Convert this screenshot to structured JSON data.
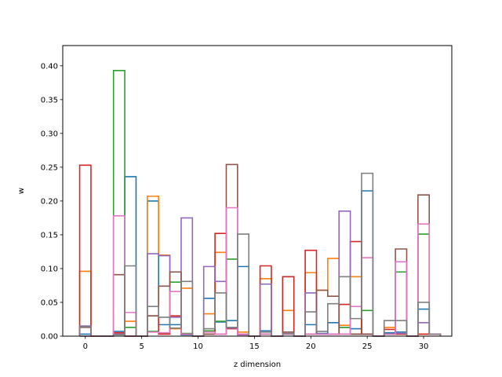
{
  "chart_data": {
    "type": "step-histogram",
    "xlabel": "z dimension",
    "ylabel": "w",
    "xlim": [
      -2,
      32.5
    ],
    "ylim": [
      0,
      0.43
    ],
    "xticks": [
      0,
      5,
      10,
      15,
      20,
      25,
      30
    ],
    "yticks": [
      0.0,
      0.05,
      0.1,
      0.15,
      0.2,
      0.25,
      0.3,
      0.35,
      0.4
    ],
    "ytick_labels": [
      "0.00",
      "0.05",
      "0.10",
      "0.15",
      "0.20",
      "0.25",
      "0.30",
      "0.35",
      "0.40"
    ],
    "series_colors": [
      "#1f77b4",
      "#ff7f0e",
      "#2ca02c",
      "#d62728",
      "#9467bd",
      "#8c564b",
      "#e377c2",
      "#7f7f7f"
    ],
    "bins": [
      {
        "z": 0,
        "values": [
          0.003,
          0.096,
          0.0,
          0.253,
          0.015,
          0.013,
          0.0,
          0.014
        ]
      },
      {
        "z": 1,
        "values": [
          0.0,
          0.0,
          0.0,
          0.0,
          0.0,
          0.0,
          0.0,
          0.0
        ]
      },
      {
        "z": 2,
        "values": [
          0.0,
          0.0,
          0.0,
          0.0,
          0.0,
          0.0,
          0.0,
          0.0
        ]
      },
      {
        "z": 3,
        "values": [
          0.007,
          0.003,
          0.393,
          0.005,
          0.003,
          0.091,
          0.178,
          0.002
        ]
      },
      {
        "z": 4,
        "values": [
          0.236,
          0.022,
          0.013,
          0.0,
          0.0,
          0.0,
          0.035,
          0.104
        ]
      },
      {
        "z": 5,
        "values": [
          0.0,
          0.0,
          0.0,
          0.0,
          0.0,
          0.0,
          0.0,
          0.0
        ]
      },
      {
        "z": 6,
        "values": [
          0.2,
          0.207,
          0.007,
          0.03,
          0.122,
          0.03,
          0.006,
          0.044
        ]
      },
      {
        "z": 7,
        "values": [
          0.017,
          0.12,
          0.004,
          0.003,
          0.119,
          0.074,
          0.005,
          0.028
        ]
      },
      {
        "z": 8,
        "values": [
          0.017,
          0.011,
          0.08,
          0.03,
          0.028,
          0.095,
          0.066,
          0.012
        ]
      },
      {
        "z": 9,
        "values": [
          0.002,
          0.071,
          0.004,
          0.003,
          0.175,
          0.003,
          0.003,
          0.081
        ]
      },
      {
        "z": 10,
        "values": [
          0.0,
          0.0,
          0.0,
          0.0,
          0.0,
          0.0,
          0.0,
          0.0
        ]
      },
      {
        "z": 11,
        "values": [
          0.056,
          0.033,
          0.008,
          0.003,
          0.103,
          0.003,
          0.006,
          0.011
        ]
      },
      {
        "z": 12,
        "values": [
          0.021,
          0.124,
          0.022,
          0.152,
          0.081,
          0.003,
          0.003,
          0.064
        ]
      },
      {
        "z": 13,
        "values": [
          0.023,
          0.013,
          0.114,
          0.011,
          0.012,
          0.254,
          0.19,
          0.013
        ]
      },
      {
        "z": 14,
        "values": [
          0.103,
          0.006,
          0.003,
          0.002,
          0.002,
          0.003,
          0.003,
          0.151
        ]
      },
      {
        "z": 15,
        "values": [
          0.0,
          0.0,
          0.0,
          0.0,
          0.0,
          0.0,
          0.0,
          0.0
        ]
      },
      {
        "z": 16,
        "values": [
          0.008,
          0.085,
          0.003,
          0.104,
          0.077,
          0.003,
          0.003,
          0.006
        ]
      },
      {
        "z": 17,
        "values": [
          0.0,
          0.0,
          0.0,
          0.0,
          0.0,
          0.0,
          0.0,
          0.0
        ]
      },
      {
        "z": 18,
        "values": [
          0.003,
          0.038,
          0.003,
          0.088,
          0.003,
          0.006,
          0.003,
          0.004
        ]
      },
      {
        "z": 19,
        "values": [
          0.0,
          0.0,
          0.0,
          0.0,
          0.0,
          0.0,
          0.0,
          0.0
        ]
      },
      {
        "z": 20,
        "values": [
          0.017,
          0.094,
          0.003,
          0.127,
          0.064,
          0.003,
          0.003,
          0.036
        ]
      },
      {
        "z": 21,
        "values": [
          0.004,
          0.068,
          0.003,
          0.003,
          0.003,
          0.068,
          0.003,
          0.007
        ]
      },
      {
        "z": 22,
        "values": [
          0.02,
          0.115,
          0.003,
          0.003,
          0.003,
          0.059,
          0.003,
          0.048
        ]
      },
      {
        "z": 23,
        "values": [
          0.013,
          0.016,
          0.013,
          0.047,
          0.185,
          0.003,
          0.003,
          0.088
        ]
      },
      {
        "z": 24,
        "values": [
          0.011,
          0.088,
          0.003,
          0.14,
          0.003,
          0.003,
          0.044,
          0.026
        ]
      },
      {
        "z": 25,
        "values": [
          0.215,
          0.003,
          0.038,
          0.003,
          0.003,
          0.003,
          0.116,
          0.241
        ]
      },
      {
        "z": 26,
        "values": [
          0.0,
          0.0,
          0.0,
          0.0,
          0.0,
          0.0,
          0.0,
          0.0
        ]
      },
      {
        "z": 27,
        "values": [
          0.005,
          0.013,
          0.003,
          0.01,
          0.003,
          0.003,
          0.003,
          0.023
        ]
      },
      {
        "z": 28,
        "values": [
          0.006,
          0.003,
          0.095,
          0.003,
          0.004,
          0.129,
          0.11,
          0.023
        ]
      },
      {
        "z": 29,
        "values": [
          0.0,
          0.0,
          0.0,
          0.0,
          0.0,
          0.0,
          0.0,
          0.0
        ]
      },
      {
        "z": 30,
        "values": [
          0.04,
          0.003,
          0.151,
          0.003,
          0.02,
          0.209,
          0.166,
          0.05
        ]
      },
      {
        "z": 31,
        "values": [
          0.003,
          0.003,
          0.003,
          0.003,
          0.003,
          0.003,
          0.003,
          0.003
        ]
      }
    ]
  }
}
